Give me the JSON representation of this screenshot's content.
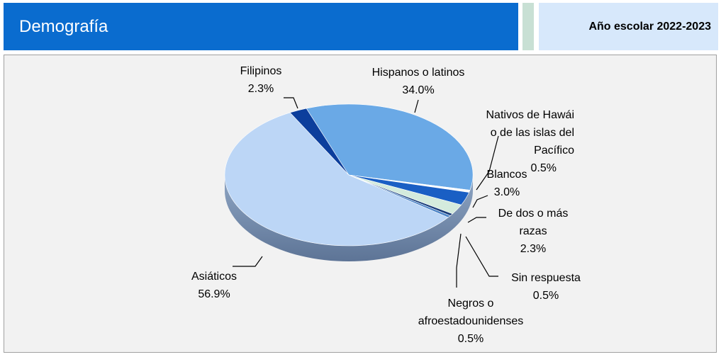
{
  "header": {
    "title": "Demografía",
    "school_year": "Año escolar 2022-2023"
  },
  "colors": {
    "header_blue": "#0a6ccf",
    "header_accent": "#c8e0d4",
    "year_box": "#d7e8fb",
    "panel_bg": "#f2f2f2"
  },
  "chart_data": {
    "type": "pie",
    "title": "",
    "three_d": true,
    "slices": [
      {
        "label": "Hispanos o latinos",
        "value": 34.0,
        "display": "34.0%",
        "color": "#6aa9e6"
      },
      {
        "label": "Nativos de Hawái o de las islas del Pacífico",
        "value": 0.5,
        "display": "0.5%",
        "color": "#ffffff"
      },
      {
        "label": "Blancos",
        "value": 3.0,
        "display": "3.0%",
        "color": "#1a5fc4"
      },
      {
        "label": "De dos o más razas",
        "value": 2.3,
        "display": "2.3%",
        "color": "#d4ebdd"
      },
      {
        "label": "Sin respuesta",
        "value": 0.5,
        "display": "0.5%",
        "color": "#163a78"
      },
      {
        "label": "Negros o afroestadounidenses",
        "value": 0.5,
        "display": "0.5%",
        "color": "#4f86c8"
      },
      {
        "label": "Asiáticos",
        "value": 56.9,
        "display": "56.9%",
        "color": "#bcd6f6"
      },
      {
        "label": "Filipinos",
        "value": 2.3,
        "display": "2.3%",
        "color": "#0c3e9c"
      }
    ]
  }
}
